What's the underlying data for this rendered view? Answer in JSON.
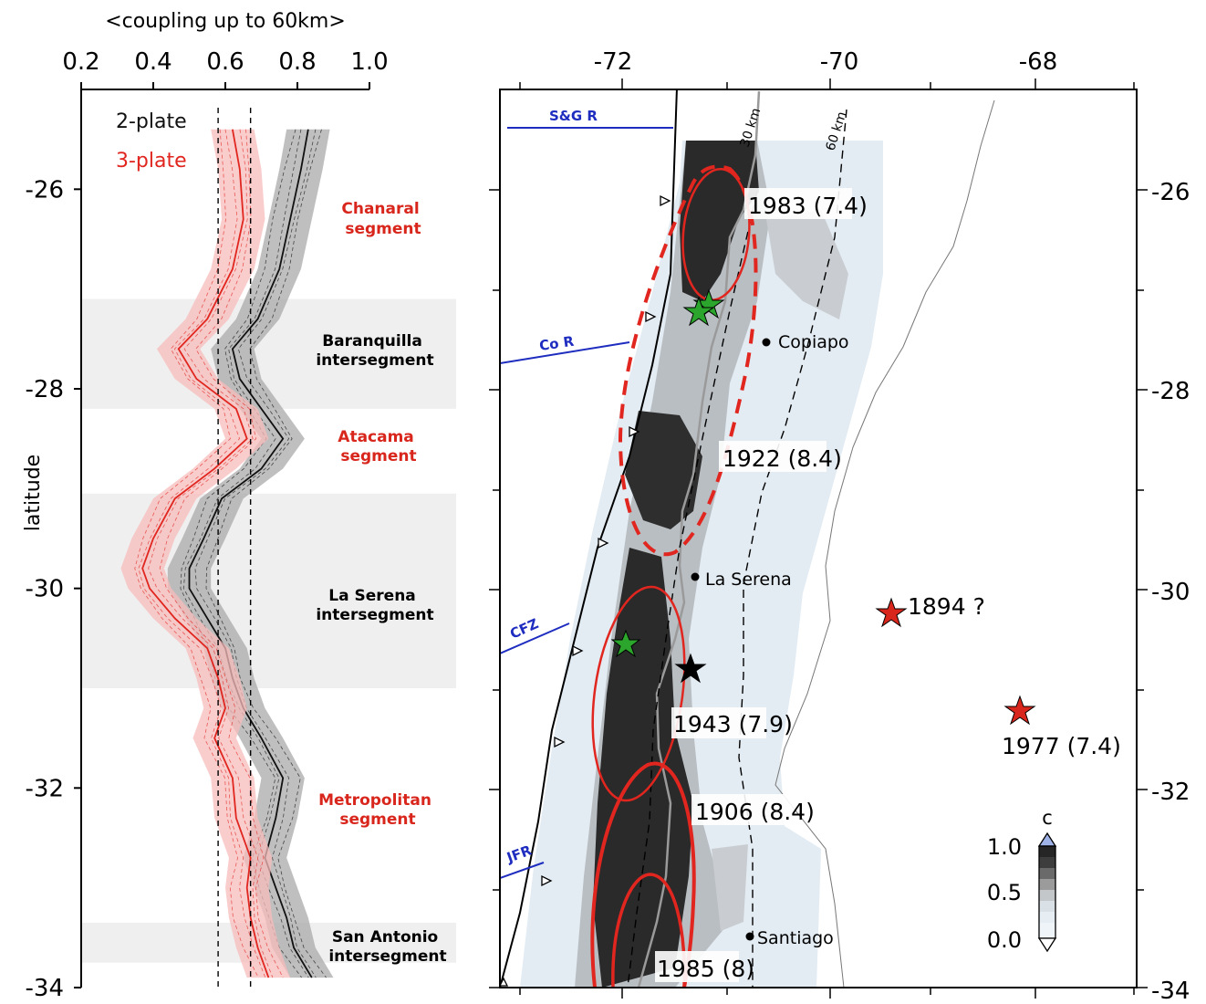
{
  "left_panel": {
    "title": "<coupling up to 60km>",
    "x_ticks": [
      "0.2",
      "0.4",
      "0.6",
      "0.8",
      "1.0"
    ],
    "y_ticks": [
      "-26",
      "-28",
      "-30",
      "-32",
      "-34"
    ],
    "ylabel": "latitude",
    "legend": {
      "two_plate": "2-plate",
      "three_plate": "3-plate"
    },
    "segments": [
      {
        "label_lines": [
          "Chanaral",
          "segment"
        ],
        "color": "red"
      },
      {
        "label_lines": [
          "Baranquilla",
          "intersegment"
        ],
        "color": "black"
      },
      {
        "label_lines": [
          "Atacama",
          "segment"
        ],
        "color": "red"
      },
      {
        "label_lines": [
          "La Serena",
          "intersegment"
        ],
        "color": "black"
      },
      {
        "label_lines": [
          "Metropolitan",
          "segment"
        ],
        "color": "red"
      },
      {
        "label_lines": [
          "San Antonio",
          "intersegment"
        ],
        "color": "black"
      }
    ],
    "dashed_reference_x": [
      0.58,
      0.67
    ]
  },
  "chart_data": {
    "type": "line",
    "xlabel": "<coupling up to 60km>",
    "ylabel": "latitude",
    "xlim": [
      0.2,
      1.0
    ],
    "ylim": [
      -34,
      -25
    ],
    "series": [
      {
        "name": "2-plate",
        "latitude": [
          -25.4,
          -25.8,
          -26.3,
          -26.8,
          -27.3,
          -27.6,
          -27.9,
          -28.2,
          -28.5,
          -28.8,
          -29.1,
          -29.5,
          -29.8,
          -30.0,
          -30.3,
          -30.6,
          -30.9,
          -31.2,
          -31.5,
          -31.9,
          -32.3,
          -32.7,
          -33.0,
          -33.3,
          -33.6,
          -33.9
        ],
        "coupling": [
          0.83,
          0.81,
          0.78,
          0.75,
          0.69,
          0.62,
          0.64,
          0.7,
          0.76,
          0.7,
          0.59,
          0.54,
          0.5,
          0.5,
          0.55,
          0.6,
          0.62,
          0.65,
          0.7,
          0.76,
          0.74,
          0.71,
          0.74,
          0.77,
          0.79,
          0.84
        ],
        "color": "#111111",
        "band_color": "#a9a9a9"
      },
      {
        "name": "3-plate",
        "latitude": [
          -25.4,
          -25.8,
          -26.3,
          -26.8,
          -27.3,
          -27.6,
          -27.9,
          -28.2,
          -28.5,
          -28.8,
          -29.1,
          -29.5,
          -29.8,
          -30.0,
          -30.3,
          -30.6,
          -30.9,
          -31.2,
          -31.5,
          -31.9,
          -32.3,
          -32.7,
          -33.0,
          -33.3,
          -33.6,
          -33.9
        ],
        "coupling": [
          0.62,
          0.64,
          0.65,
          0.62,
          0.55,
          0.47,
          0.52,
          0.63,
          0.66,
          0.57,
          0.46,
          0.4,
          0.37,
          0.39,
          0.46,
          0.55,
          0.58,
          0.6,
          0.57,
          0.62,
          0.63,
          0.67,
          0.66,
          0.67,
          0.69,
          0.72
        ],
        "color": "#e0261f",
        "band_color": "#f8bcbc"
      }
    ],
    "shaded_latitude_bands": [
      [
        -27.1,
        -28.2
      ],
      [
        -29.05,
        -31.0
      ],
      [
        -33.35,
        -33.75
      ]
    ]
  },
  "map": {
    "x_ticks": [
      "-72",
      "-70",
      "-68"
    ],
    "y_ticks": [
      "-26",
      "-28",
      "-30",
      "-32",
      "-34"
    ],
    "ridges": [
      "S&G R",
      "Co R",
      "CFZ",
      "JFR"
    ],
    "depth_contours": [
      "30 km",
      "60 km"
    ],
    "cities": [
      "Copiapo",
      "La Serena",
      "Santiago"
    ],
    "earthquakes": [
      {
        "label": "1983 (7.4)"
      },
      {
        "label": "1922 (8.4)"
      },
      {
        "label": "1943 (7.9)"
      },
      {
        "label": "1906 (8.4)"
      },
      {
        "label": "1985 (8)"
      },
      {
        "label": "1894 ?"
      },
      {
        "label": "1977 (7.4)"
      }
    ],
    "colorbar": {
      "title": "c",
      "ticks": [
        "1.0",
        "0.5",
        "0.0"
      ]
    }
  }
}
